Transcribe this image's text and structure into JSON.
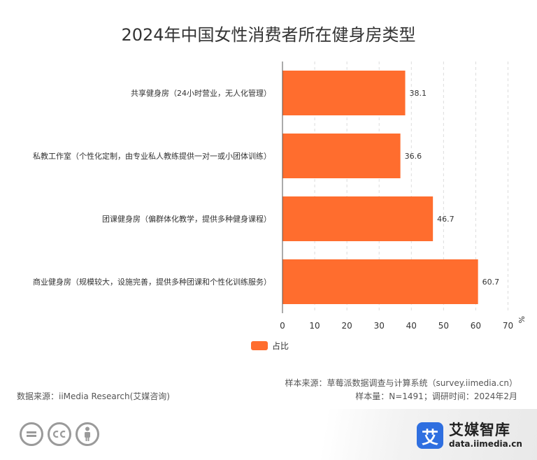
{
  "chart_data": {
    "type": "bar",
    "orientation": "horizontal",
    "title": "2024年中国女性消费者所在健身房类型",
    "categories": [
      "共享健身房（24小时营业，无人化管理）",
      "私教工作室（个性化定制，由专业私人教练提供一对一或小团体训练）",
      "团课健身房（偏群体化教学，提供多种健身课程）",
      "商业健身房（规模较大，设施完善，提供多种团课和个性化训练服务）"
    ],
    "series": [
      {
        "name": "占比",
        "values": [
          38.1,
          36.6,
          46.7,
          60.7
        ],
        "color": "#ff6d2e"
      }
    ],
    "x_unit": "%",
    "xlim": [
      0,
      70
    ],
    "x_ticks": [
      0,
      10,
      20,
      30,
      40,
      50,
      60,
      70
    ],
    "grid": true,
    "legend_position": "bottom"
  },
  "source_left": "数据来源：iiMedia Research(艾媒咨询)",
  "source_right_1": "样本来源：草莓派数据调查与计算系统（survey.iimedia.cn）",
  "source_right_2": "样本量：N=1491；调研时间：2024年2月",
  "license_icons": [
    "equal-icon",
    "cc-icon",
    "person-icon"
  ],
  "brand": {
    "logo_char": "艾",
    "name": "艾媒智库",
    "url": "data.iimedia.cn",
    "color": "#2f6fe0"
  }
}
